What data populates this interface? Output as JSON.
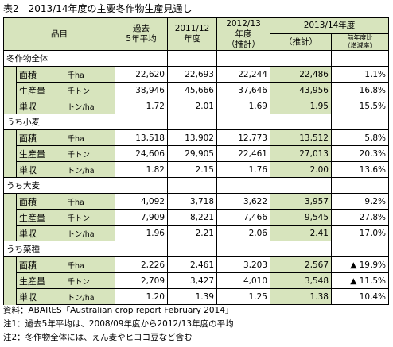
{
  "title": "表2　2013/14年度の主要冬作物生産見通し",
  "header": {
    "item": "品目",
    "past": "過去\n5年平均",
    "y2011": "2011/12\n年度",
    "y2012": "2012/13\n年度\n（推計）",
    "y2013": "2013/14年度",
    "y2013_est": "（推計）",
    "change": "前年度比\n（増減率）"
  },
  "sections": [
    {
      "name": "冬作物全体",
      "rows": [
        {
          "label": "面積",
          "unit": "千ha",
          "past": "22,620",
          "y2011": "22,693",
          "y2012": "22,244",
          "y2013": "22,486",
          "change": "1.1%"
        },
        {
          "label": "生産量",
          "unit": "千トン",
          "past": "38,946",
          "y2011": "45,666",
          "y2012": "37,646",
          "y2013": "43,956",
          "change": "16.8%"
        },
        {
          "label": "単収",
          "unit": "トン/ha",
          "past": "1.72",
          "y2011": "2.01",
          "y2012": "1.69",
          "y2013": "1.95",
          "change": "15.5%"
        }
      ]
    },
    {
      "name": "うち小麦",
      "rows": [
        {
          "label": "面積",
          "unit": "千ha",
          "past": "13,518",
          "y2011": "13,902",
          "y2012": "12,773",
          "y2013": "13,512",
          "change": "5.8%"
        },
        {
          "label": "生産量",
          "unit": "千トン",
          "past": "24,606",
          "y2011": "29,905",
          "y2012": "22,461",
          "y2013": "27,013",
          "change": "20.3%"
        },
        {
          "label": "単収",
          "unit": "トン/ha",
          "past": "1.82",
          "y2011": "2.15",
          "y2012": "1.76",
          "y2013": "2.00",
          "change": "13.6%"
        }
      ]
    },
    {
      "name": "うち大麦",
      "rows": [
        {
          "label": "面積",
          "unit": "千ha",
          "past": "4,092",
          "y2011": "3,718",
          "y2012": "3,622",
          "y2013": "3,957",
          "change": "9.2%"
        },
        {
          "label": "生産量",
          "unit": "千トン",
          "past": "7,909",
          "y2011": "8,221",
          "y2012": "7,466",
          "y2013": "9,545",
          "change": "27.8%"
        },
        {
          "label": "単収",
          "unit": "トン/ha",
          "past": "1.96",
          "y2011": "2.21",
          "y2012": "2.06",
          "y2013": "2.41",
          "change": "17.0%"
        }
      ]
    },
    {
      "name": "うち菜種",
      "rows": [
        {
          "label": "面積",
          "unit": "千ha",
          "past": "2,226",
          "y2011": "2,461",
          "y2012": "3,203",
          "y2013": "2,567",
          "change": "▲ 19.9%"
        },
        {
          "label": "生産量",
          "unit": "千トン",
          "past": "2,709",
          "y2011": "3,427",
          "y2012": "4,010",
          "y2013": "3,548",
          "change": "▲ 11.5%"
        },
        {
          "label": "単収",
          "unit": "トン/ha",
          "past": "1.20",
          "y2011": "1.39",
          "y2012": "1.25",
          "y2013": "1.38",
          "change": "10.4%"
        }
      ]
    }
  ],
  "notes": {
    "source": "資料：ABARES「Australian crop report February 2014」",
    "note1": "注1：過去5年平均は、2008/09年度から2012/13年度の平均",
    "note2": "注2：冬作物全体には、えん麦やヒヨコ豆など含む"
  },
  "colors": {
    "header_bg": "#d7e4bd",
    "border": "#000000"
  }
}
